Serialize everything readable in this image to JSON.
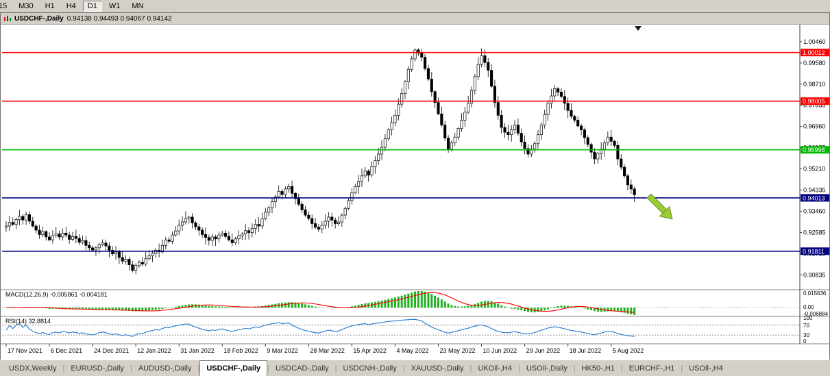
{
  "toolbar": {
    "timeframes": [
      "15",
      "M30",
      "H1",
      "H4",
      "D1",
      "W1",
      "MN"
    ],
    "active": "D1"
  },
  "window": {
    "title": "USDCHF-,Daily",
    "ohlc_text": "0.94138 0.94493 0.94067 0.94142"
  },
  "chart_data": {
    "type": "candlestick",
    "symbol": "USDCHF-",
    "period": "Daily",
    "title": "USDCHF-,Daily",
    "ohlc_text": "0.94138 0.94493 0.94067 0.94142",
    "price_axis_labels": [
      "1.00460",
      "0.99580",
      "0.98710",
      "0.97835",
      "0.96960",
      "0.96085",
      "0.95210",
      "0.94335",
      "0.93460",
      "0.92585",
      "0.91710",
      "0.90835"
    ],
    "x_labels": [
      "17 Nov 2021",
      "6 Dec 2021",
      "24 Dec 2021",
      "12 Jan 2022",
      "31 Jan 2022",
      "18 Feb 2022",
      "9 Mar 2022",
      "28 Mar 2022",
      "15 Apr 2022",
      "4 May 2022",
      "23 May 2022",
      "10 Jun 2022",
      "29 Jun 2022",
      "18 Jul 2022",
      "5 Aug 2022"
    ],
    "x_label_step": 13,
    "candles": {
      "first_open": 0.928,
      "closes": [
        0.9285,
        0.93,
        0.9292,
        0.9312,
        0.9325,
        0.931,
        0.9332,
        0.9305,
        0.9285,
        0.9268,
        0.925,
        0.9262,
        0.924,
        0.9228,
        0.9245,
        0.9252,
        0.924,
        0.9256,
        0.9248,
        0.923,
        0.9242,
        0.9234,
        0.9218,
        0.9225,
        0.9205,
        0.9195,
        0.9186,
        0.9195,
        0.9208,
        0.9215,
        0.9203,
        0.9185,
        0.917,
        0.9178,
        0.9155,
        0.914,
        0.9148,
        0.9125,
        0.9102,
        0.9122,
        0.9135,
        0.9128,
        0.915,
        0.9162,
        0.9172,
        0.9185,
        0.9178,
        0.9205,
        0.9228,
        0.9222,
        0.9248,
        0.9265,
        0.9288,
        0.9302,
        0.9315,
        0.9322,
        0.9298,
        0.9282,
        0.9268,
        0.925,
        0.9238,
        0.9226,
        0.924,
        0.9232,
        0.9248,
        0.9256,
        0.9242,
        0.9228,
        0.9216,
        0.9232,
        0.9245,
        0.9252,
        0.9266,
        0.9258,
        0.9275,
        0.9292,
        0.9285,
        0.9315,
        0.9342,
        0.936,
        0.9385,
        0.9405,
        0.9428,
        0.9415,
        0.9438,
        0.9448,
        0.942,
        0.9398,
        0.9375,
        0.9352,
        0.933,
        0.9316,
        0.9295,
        0.928,
        0.9272,
        0.9288,
        0.9305,
        0.9322,
        0.931,
        0.9295,
        0.9302,
        0.933,
        0.9358,
        0.939,
        0.9422,
        0.9448,
        0.947,
        0.9492,
        0.9512,
        0.9495,
        0.953,
        0.9555,
        0.9582,
        0.961,
        0.9645,
        0.9682,
        0.9712,
        0.9742,
        0.9788,
        0.9832,
        0.988,
        0.9932,
        0.9975,
        1.0012,
        0.9998,
        0.9982,
        0.9935,
        0.9892,
        0.984,
        0.9795,
        0.9748,
        0.9702,
        0.9648,
        0.9602,
        0.9628,
        0.9652,
        0.9688,
        0.9722,
        0.9755,
        0.9792,
        0.9845,
        0.9902,
        0.9952,
        0.9988,
        0.996,
        0.9928,
        0.9862,
        0.9795,
        0.9742,
        0.9692,
        0.9672,
        0.9662,
        0.9682,
        0.9702,
        0.9668,
        0.9632,
        0.9605,
        0.9582,
        0.9602,
        0.9625,
        0.9662,
        0.9702,
        0.9745,
        0.9792,
        0.9822,
        0.9852,
        0.9838,
        0.982,
        0.9792,
        0.9762,
        0.9738,
        0.9722,
        0.9698,
        0.9682,
        0.965,
        0.9622,
        0.959,
        0.9562,
        0.9585,
        0.9602,
        0.9628,
        0.9652,
        0.9635,
        0.9618,
        0.9562,
        0.9528,
        0.9492,
        0.9455,
        0.9438,
        0.9414
      ]
    },
    "hlines": [
      {
        "price": 1.00012,
        "label": "1.00012",
        "color": "#ff0000"
      },
      {
        "price": 0.98005,
        "label": "0.98005",
        "color": "#ff0000"
      },
      {
        "price": 0.95998,
        "label": "0.95998",
        "color": "#00bb00"
      },
      {
        "price": 0.94013,
        "label": "0.94013",
        "color": "#000080"
      },
      {
        "price": 0.91811,
        "label": "0.91811",
        "color": "#000080"
      }
    ],
    "arrow_object": {
      "direction": "down-right",
      "color": "#9acd32"
    },
    "indicators": {
      "macd": {
        "label": "MACD(12,26,9) -0.005861 -0.004181",
        "value": -0.005861,
        "signal": -0.004181,
        "axis_labels": [
          "0.015636",
          "0.00",
          "-0.006884"
        ],
        "histogram_color": "#22b022",
        "signal_color": "#ff0000"
      },
      "rsi": {
        "label": "RSI(14) 32.8814",
        "value": 32.8814,
        "levels": [
          70,
          30
        ],
        "axis_labels": [
          "100",
          "70",
          "30",
          "0"
        ],
        "line_color": "#3080d0"
      }
    }
  },
  "tabs": {
    "active_index": 3,
    "items": [
      "USDX,Weekly",
      "EURUSD-,Daily",
      "AUDUSD-,Daily",
      "USDCHF-,Daily",
      "USDCAD-,Daily",
      "USDCNH-,Daily",
      "XAUUSD-,Daily",
      "UKOil-,H4",
      "USOil-,Daily",
      "HK50-,H1",
      "EURCHF-,H1",
      "USOil-,H4"
    ]
  }
}
